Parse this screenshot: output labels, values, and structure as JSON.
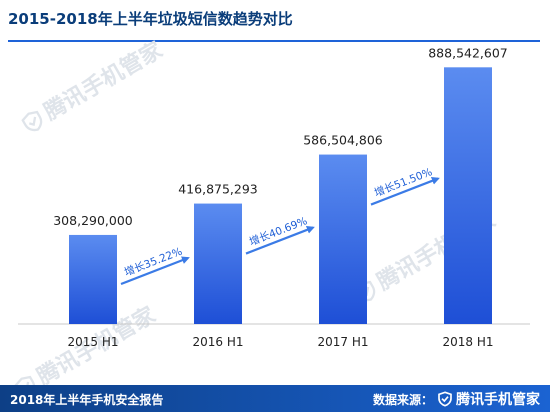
{
  "page": {
    "title": "2015-2018年上半年垃圾短信数趋势对比",
    "watermark_text": "腾讯手机管家",
    "footer_left": "2018年上半年手机安全报告",
    "footer_source_label": "数据来源：",
    "footer_brand": "腾讯手机管家"
  },
  "colors": {
    "bar_top": "#5b8cf0",
    "bar_bottom": "#1e4fd6",
    "arrow": "#3b7be6",
    "growth_text": "#1f5fd6",
    "axis": "#c8c8c8",
    "title": "#0a3d7a",
    "footer_bg": "#1557b8"
  },
  "chart_data": {
    "type": "bar",
    "categories": [
      "2015 H1",
      "2016 H1",
      "2017 H1",
      "2018 H1"
    ],
    "values": [
      308290000,
      416875293,
      586504806,
      888542607
    ],
    "value_labels": [
      "308,290,000",
      "416,875,293",
      "586,504,806",
      "888,542,607"
    ],
    "growth_labels": [
      "增长35.22%",
      "增长40.69%",
      "增长51.50%"
    ],
    "title": "2015-2018年上半年垃圾短信数趋势对比",
    "xlabel": "",
    "ylabel": "",
    "ylim": [
      0,
      900000000
    ],
    "grid": false
  }
}
